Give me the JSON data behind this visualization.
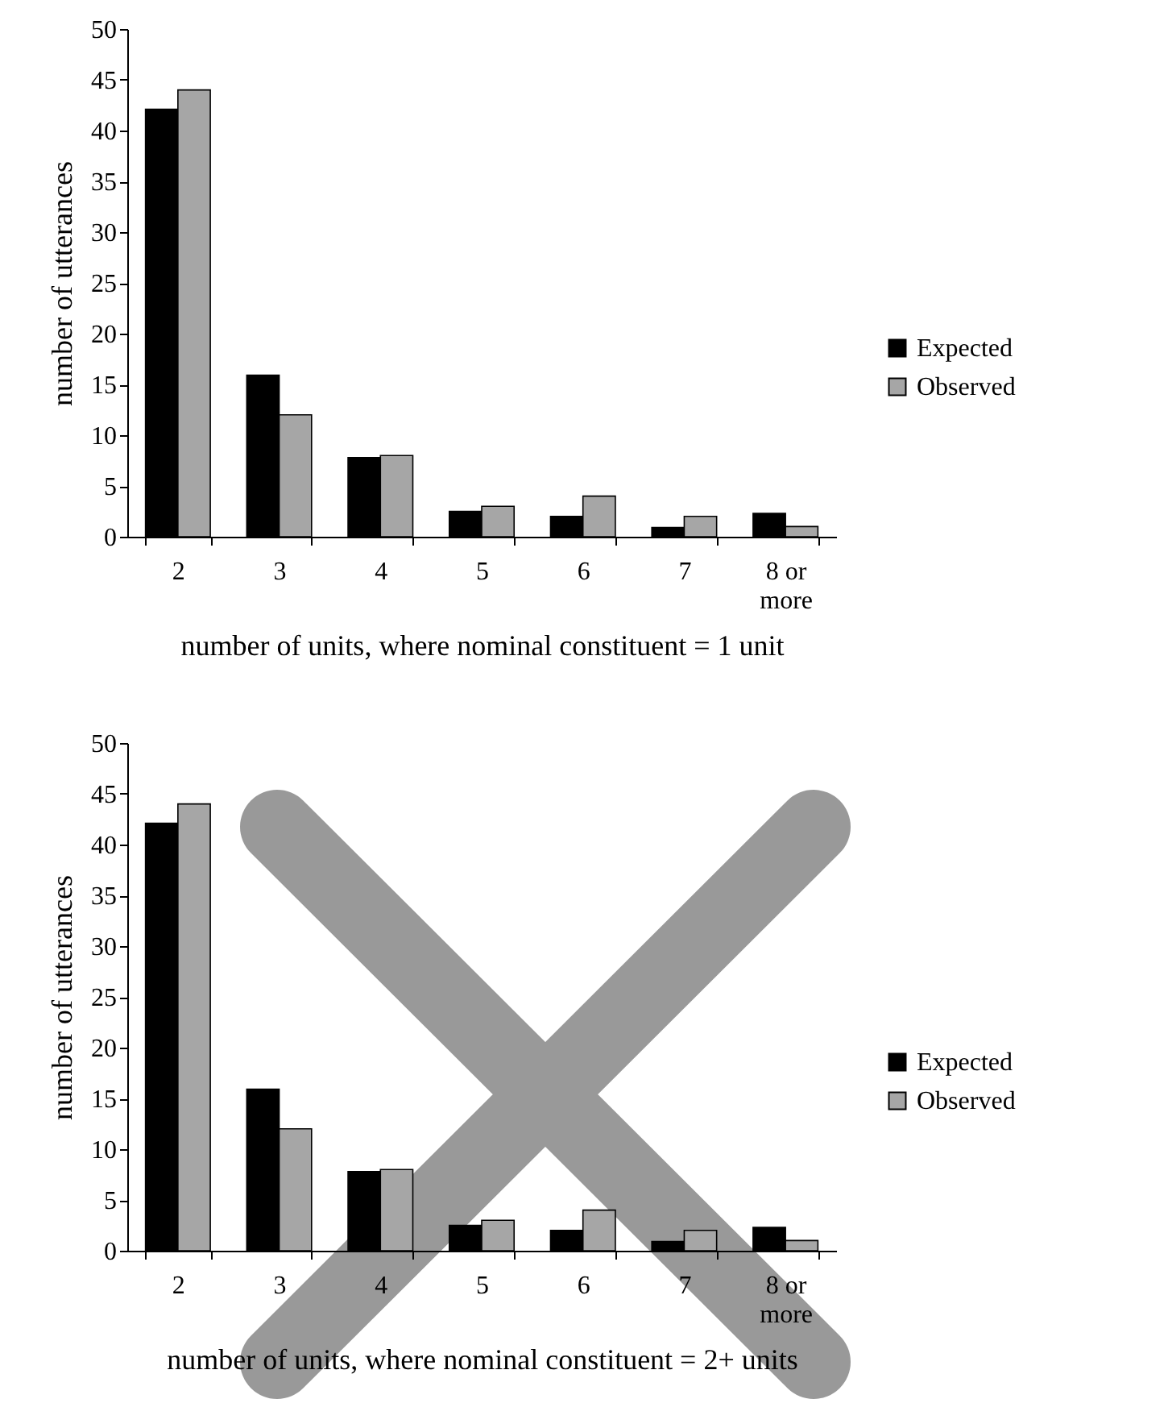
{
  "chart_data": [
    {
      "type": "bar",
      "categories": [
        "2",
        "3",
        "4",
        "5",
        "6",
        "7",
        "8 or more"
      ],
      "series": [
        {
          "name": "Expected",
          "color": "#000000",
          "values": [
            42.1,
            15.9,
            7.8,
            2.5,
            2.0,
            0.9,
            2.3
          ]
        },
        {
          "name": "Observed",
          "color": "#a6a6a6",
          "values": [
            44,
            12,
            8,
            3,
            4,
            2,
            1
          ]
        }
      ],
      "xlabel": "number of units, where nominal constituent = 1 unit",
      "ylabel": "number of utterances",
      "ylim": [
        0,
        50
      ],
      "yticks": [
        0,
        5,
        10,
        15,
        20,
        25,
        30,
        35,
        40,
        45,
        50
      ],
      "grid": false,
      "legend": "right"
    },
    {
      "type": "bar",
      "categories": [
        "2",
        "3",
        "4",
        "5",
        "6",
        "7",
        "8 or more"
      ],
      "series": [
        {
          "name": "Expected",
          "color": "#000000",
          "values": [
            42.1,
            15.9,
            7.8,
            2.5,
            2.0,
            0.9,
            2.3
          ]
        },
        {
          "name": "Observed",
          "color": "#a6a6a6",
          "values": [
            44,
            12,
            8,
            3,
            4,
            2,
            1
          ]
        }
      ],
      "xlabel": "number of units, where nominal constituent = 2+ units",
      "ylabel": "number of utterances",
      "ylim": [
        0,
        50
      ],
      "yticks": [
        0,
        5,
        10,
        15,
        20,
        25,
        30,
        35,
        40,
        45,
        50
      ],
      "grid": false,
      "legend": "right"
    }
  ]
}
